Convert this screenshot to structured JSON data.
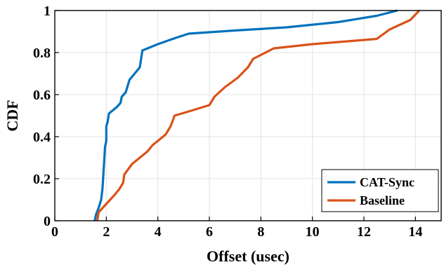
{
  "chart_data": {
    "type": "line",
    "xlabel": "Offset (usec)",
    "ylabel": "CDF",
    "xlim": [
      0,
      15
    ],
    "ylim": [
      0,
      1
    ],
    "xticks": [
      "0",
      "2",
      "4",
      "6",
      "8",
      "10",
      "12",
      "14"
    ],
    "yticks": [
      "0",
      "0.2",
      "0.4",
      "0.6",
      "0.8",
      "1"
    ],
    "grid": true,
    "legend_position": "bottom-right",
    "series": [
      {
        "name": "CAT-Sync",
        "color": "#0072BD",
        "points": [
          [
            1.55,
            0.0
          ],
          [
            1.6,
            0.03
          ],
          [
            1.7,
            0.06
          ],
          [
            1.8,
            0.1
          ],
          [
            1.85,
            0.15
          ],
          [
            1.9,
            0.25
          ],
          [
            1.95,
            0.35
          ],
          [
            2.0,
            0.38
          ],
          [
            2.0,
            0.45
          ],
          [
            2.05,
            0.47
          ],
          [
            2.1,
            0.51
          ],
          [
            2.4,
            0.54
          ],
          [
            2.55,
            0.56
          ],
          [
            2.6,
            0.59
          ],
          [
            2.75,
            0.61
          ],
          [
            2.8,
            0.63
          ],
          [
            2.9,
            0.67
          ],
          [
            3.1,
            0.7
          ],
          [
            3.3,
            0.73
          ],
          [
            3.4,
            0.81
          ],
          [
            4.0,
            0.84
          ],
          [
            4.7,
            0.87
          ],
          [
            5.2,
            0.89
          ],
          [
            7.0,
            0.905
          ],
          [
            9.0,
            0.92
          ],
          [
            11.0,
            0.945
          ],
          [
            12.5,
            0.975
          ],
          [
            13.3,
            1.0
          ]
        ]
      },
      {
        "name": "Baseline",
        "color": "#D95319",
        "points": [
          [
            1.65,
            0.0
          ],
          [
            1.7,
            0.04
          ],
          [
            2.0,
            0.08
          ],
          [
            2.3,
            0.12
          ],
          [
            2.5,
            0.15
          ],
          [
            2.65,
            0.18
          ],
          [
            2.7,
            0.22
          ],
          [
            3.0,
            0.27
          ],
          [
            3.4,
            0.31
          ],
          [
            3.6,
            0.33
          ],
          [
            3.8,
            0.36
          ],
          [
            4.0,
            0.38
          ],
          [
            4.3,
            0.41
          ],
          [
            4.5,
            0.45
          ],
          [
            4.65,
            0.5
          ],
          [
            5.2,
            0.52
          ],
          [
            6.0,
            0.55
          ],
          [
            6.2,
            0.59
          ],
          [
            6.6,
            0.635
          ],
          [
            7.1,
            0.68
          ],
          [
            7.5,
            0.73
          ],
          [
            7.7,
            0.77
          ],
          [
            8.5,
            0.82
          ],
          [
            10.0,
            0.84
          ],
          [
            12.0,
            0.86
          ],
          [
            12.5,
            0.865
          ],
          [
            13.0,
            0.91
          ],
          [
            13.8,
            0.955
          ],
          [
            14.15,
            1.0
          ]
        ]
      }
    ]
  }
}
